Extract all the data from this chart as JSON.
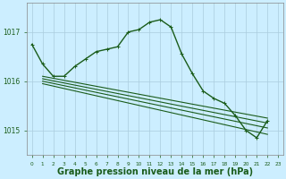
{
  "background_color": "#cceeff",
  "grid_color": "#aaccdd",
  "line_color": "#1a5c1a",
  "xlabel": "Graphe pression niveau de la mer (hPa)",
  "xlabel_fontsize": 7,
  "tick_color": "#1a5c1a",
  "ylim": [
    1014.5,
    1017.6
  ],
  "xlim": [
    -0.5,
    23.5
  ],
  "yticks": [
    1015,
    1016,
    1017
  ],
  "xticks": [
    0,
    1,
    2,
    3,
    4,
    5,
    6,
    7,
    8,
    9,
    10,
    11,
    12,
    13,
    14,
    15,
    16,
    17,
    18,
    19,
    20,
    21,
    22,
    23
  ],
  "series": [
    {
      "x": [
        0,
        1,
        2,
        3,
        4,
        5,
        6,
        7,
        8,
        9,
        10,
        11,
        12,
        13,
        14,
        15,
        16,
        17,
        18,
        19,
        20,
        21,
        22
      ],
      "y": [
        1016.75,
        1016.35,
        1016.1,
        1016.1,
        1016.3,
        1016.45,
        1016.6,
        1016.65,
        1016.7,
        1017.0,
        1017.05,
        1017.2,
        1017.25,
        1017.1,
        1016.55,
        1016.15,
        1015.8,
        1015.65,
        1015.55,
        1015.3,
        1015.0,
        1014.85,
        1015.2
      ],
      "marker": true,
      "lw": 1.0
    },
    {
      "x": [
        1,
        22
      ],
      "y": [
        1016.1,
        1015.25
      ],
      "marker": false,
      "lw": 0.8
    },
    {
      "x": [
        1,
        22
      ],
      "y": [
        1016.05,
        1015.15
      ],
      "marker": false,
      "lw": 0.8
    },
    {
      "x": [
        1,
        22
      ],
      "y": [
        1016.0,
        1015.05
      ],
      "marker": false,
      "lw": 0.8
    },
    {
      "x": [
        1,
        22
      ],
      "y": [
        1015.95,
        1014.92
      ],
      "marker": false,
      "lw": 0.8
    }
  ]
}
